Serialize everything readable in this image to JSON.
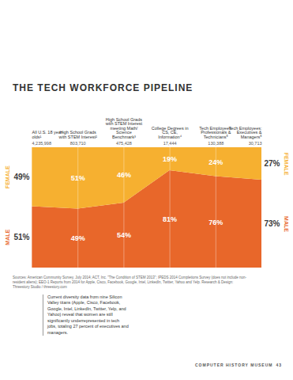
{
  "chart_data": {
    "type": "area",
    "stacked": true,
    "title": "THE TECH WORKFORCE PIPELINE",
    "categories": [
      "All U.S. 18 year-olds¹",
      "High School Grads with STEM Interest²",
      "High School Grads with STEM Interest meeting Math/ Science Benchmark³",
      "College Degrees in CS, CE, Information⁴",
      "Tech Employees: Professionals & Technicians⁵",
      "Tech Employees: Executives & Managers⁵"
    ],
    "totals": [
      4235998,
      803710,
      475428,
      17444,
      130388,
      30713
    ],
    "total_labels": [
      "4,235,998",
      "803,710",
      "475,428",
      "17,444",
      "130,388",
      "30,713"
    ],
    "series": [
      {
        "name": "FEMALE",
        "color": "#f6b030",
        "values": [
          49,
          51,
          46,
          19,
          24,
          27
        ],
        "value_labels": [
          "49%",
          "51%",
          "46%",
          "19%",
          "24%",
          "27%"
        ]
      },
      {
        "name": "MALE",
        "color": "#e8672a",
        "values": [
          51,
          49,
          54,
          81,
          76,
          73
        ],
        "value_labels": [
          "51%",
          "49%",
          "54%",
          "81%",
          "76%",
          "73%"
        ]
      }
    ],
    "ylim": [
      0,
      100
    ],
    "tick_labels": false,
    "data_labels": true
  },
  "sources": "Sources: American Community Survey, July 2014; ACT, Inc. \"The Condition of STEM 2013\"; IPEDS 2014 Completions Survey (does not include non-resident aliens); EEO-1 Reports from 2014 for Apple, Cisco, Facebook, Google, Intel, LinkedIn, Twitter, Yahoo and Yelp. Research & Design: Threestory Studio / threestory.com",
  "note": "Current diversity data from nine Silicon Valley titans (Apple, Cisco, Facebook, Google, Intel, LinkedIn, Twitter, Yelp, and Yahoo) reveal that women are still significantly underrepresented in tech jobs, totaling 27 percent of executives and managers.",
  "footer": {
    "publication": "COMPUTER HISTORY MUSEUM",
    "page": "43"
  }
}
